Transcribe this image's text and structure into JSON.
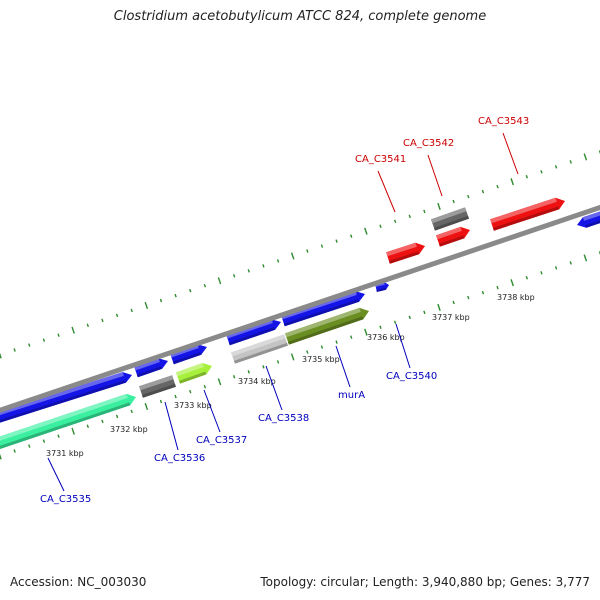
{
  "header": {
    "title": "Clostridium acetobutylicum ATCC 824, complete genome"
  },
  "footer": {
    "accession": "Accession: NC_003030",
    "stats": "Topology: circular; Length: 3,940,880 bp; Genes: 3,777"
  },
  "colors": {
    "backbone": "#8a8a8a",
    "tick": "#2e8b2e",
    "forward_label": "#cc0000",
    "reverse_label": "#0000bb",
    "blue": "#1414e6",
    "red": "#ee1111",
    "dark_grey": "#666666",
    "light_grey": "#c4c4c4",
    "olive": "#6b8e23",
    "lime": "#a6f03c",
    "aquamarine": "#3af0a0"
  },
  "scale_labels": [
    {
      "kbp": 3731,
      "text": "3731 kbp"
    },
    {
      "kbp": 3732,
      "text": "3732 kbp"
    },
    {
      "kbp": 3733,
      "text": "3733 kbp"
    },
    {
      "kbp": 3734,
      "text": "3734 kbp"
    },
    {
      "kbp": 3735,
      "text": "3735 kbp"
    },
    {
      "kbp": 3736,
      "text": "3736 kbp"
    },
    {
      "kbp": 3737,
      "text": "3737 kbp"
    },
    {
      "kbp": 3738,
      "text": "3738 kbp"
    }
  ],
  "gene_labels": {
    "forward": [
      {
        "name": "CA_C3541"
      },
      {
        "name": "CA_C3542"
      },
      {
        "name": "CA_C3543"
      }
    ],
    "reverse": [
      {
        "name": "CA_C3535"
      },
      {
        "name": "CA_C3536"
      },
      {
        "name": "CA_C3537"
      },
      {
        "name": "CA_C3538"
      },
      {
        "name": "murA"
      },
      {
        "name": "CA_C3540"
      }
    ]
  }
}
